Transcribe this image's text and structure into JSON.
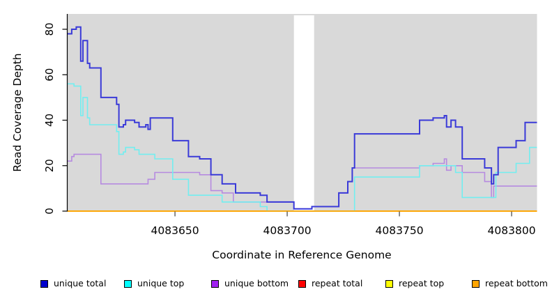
{
  "y_axis": {
    "label": "Read Coverage Depth",
    "tick_labels": [
      "0",
      "20",
      "40",
      "60",
      "80"
    ],
    "tick_values": [
      0,
      20,
      40,
      60,
      80
    ],
    "range": [
      0,
      80
    ]
  },
  "x_axis": {
    "label": "Coordinate in Reference Genome",
    "tick_labels": [
      "4083650",
      "4083700",
      "4083750",
      "4083800"
    ],
    "tick_values": [
      4083650,
      4083700,
      4083750,
      4083800
    ],
    "range": [
      4083602,
      4083811
    ]
  },
  "plot": {
    "background_color": "#d9d9d9",
    "no_data_gap": {
      "from": 4083703,
      "to": 4083712
    }
  },
  "legend": {
    "items": [
      {
        "label": "unique total",
        "color": "#0000cd"
      },
      {
        "label": "unique top",
        "color": "#00ffff"
      },
      {
        "label": "unique bottom",
        "color": "#a020f0"
      },
      {
        "label": "repeat total",
        "color": "#ff0000"
      },
      {
        "label": "repeat top",
        "color": "#ffff00"
      },
      {
        "label": "repeat bottom",
        "color": "#ffa500"
      }
    ]
  },
  "chart_data": {
    "type": "line",
    "step": "post",
    "title": "",
    "xlabel": "Coordinate in Reference Genome",
    "ylabel": "Read Coverage Depth",
    "xlim": [
      4083602,
      4083811
    ],
    "ylim": [
      0,
      80
    ],
    "grid": false,
    "series": [
      {
        "name": "repeat total",
        "line_color": "#ff0000",
        "width": 1.5,
        "points": [
          [
            4083602,
            0
          ]
        ]
      },
      {
        "name": "repeat top",
        "line_color": "#ffff00",
        "width": 1.5,
        "points": [
          [
            4083602,
            0
          ]
        ]
      },
      {
        "name": "unique bottom",
        "line_color": "#b68ae0",
        "width": 1.6,
        "points": [
          [
            4083602,
            22
          ],
          [
            4083604,
            24
          ],
          [
            4083605,
            25
          ],
          [
            4083617,
            12
          ],
          [
            4083638,
            14
          ],
          [
            4083641,
            17
          ],
          [
            4083661,
            16
          ],
          [
            4083666,
            9
          ],
          [
            4083671,
            8
          ],
          [
            4083676,
            4
          ],
          [
            4083703,
            1
          ],
          [
            4083711,
            2
          ],
          [
            4083723,
            8
          ],
          [
            4083727,
            13
          ],
          [
            4083729,
            19
          ],
          [
            4083759,
            20
          ],
          [
            4083765,
            21
          ],
          [
            4083770,
            23
          ],
          [
            4083771,
            18
          ],
          [
            4083773,
            20
          ],
          [
            4083778,
            17
          ],
          [
            4083788,
            13
          ],
          [
            4083791,
            6
          ],
          [
            4083792,
            11
          ]
        ]
      },
      {
        "name": "unique top",
        "line_color": "#72eef0",
        "width": 1.6,
        "points": [
          [
            4083602,
            56
          ],
          [
            4083605,
            55
          ],
          [
            4083608,
            42
          ],
          [
            4083609,
            50
          ],
          [
            4083611,
            41
          ],
          [
            4083612,
            38
          ],
          [
            4083624,
            35
          ],
          [
            4083625,
            25
          ],
          [
            4083627,
            26
          ],
          [
            4083628,
            28
          ],
          [
            4083632,
            27
          ],
          [
            4083634,
            25
          ],
          [
            4083641,
            23
          ],
          [
            4083649,
            14
          ],
          [
            4083656,
            7
          ],
          [
            4083671,
            4
          ],
          [
            4083688,
            2
          ],
          [
            4083691,
            0
          ],
          [
            4083730,
            15
          ],
          [
            4083759,
            20
          ],
          [
            4083775,
            17
          ],
          [
            4083778,
            6
          ],
          [
            4083793,
            17
          ],
          [
            4083802,
            21
          ],
          [
            4083808,
            28
          ]
        ]
      },
      {
        "name": "unique total",
        "line_color": "#3a3ad8",
        "width": 2,
        "points": [
          [
            4083602,
            78
          ],
          [
            4083604,
            80
          ],
          [
            4083606,
            81
          ],
          [
            4083608,
            66
          ],
          [
            4083609,
            75
          ],
          [
            4083611,
            65
          ],
          [
            4083612,
            63
          ],
          [
            4083617,
            50
          ],
          [
            4083624,
            47
          ],
          [
            4083625,
            37
          ],
          [
            4083627,
            38
          ],
          [
            4083628,
            40
          ],
          [
            4083632,
            39
          ],
          [
            4083634,
            37
          ],
          [
            4083637,
            38
          ],
          [
            4083638,
            36
          ],
          [
            4083639,
            41
          ],
          [
            4083649,
            31
          ],
          [
            4083656,
            24
          ],
          [
            4083661,
            23
          ],
          [
            4083666,
            16
          ],
          [
            4083671,
            12
          ],
          [
            4083677,
            8
          ],
          [
            4083688,
            7
          ],
          [
            4083691,
            4
          ],
          [
            4083703,
            1
          ],
          [
            4083711,
            2
          ],
          [
            4083723,
            8
          ],
          [
            4083727,
            13
          ],
          [
            4083729,
            19
          ],
          [
            4083730,
            34
          ],
          [
            4083759,
            40
          ],
          [
            4083765,
            41
          ],
          [
            4083770,
            42
          ],
          [
            4083771,
            37
          ],
          [
            4083773,
            40
          ],
          [
            4083775,
            37
          ],
          [
            4083778,
            23
          ],
          [
            4083788,
            19
          ],
          [
            4083791,
            12
          ],
          [
            4083792,
            16
          ],
          [
            4083794,
            28
          ],
          [
            4083802,
            31
          ],
          [
            4083806,
            39
          ]
        ]
      },
      {
        "name": "repeat bottom",
        "line_color": "#ffa500",
        "width": 1.8,
        "points": [
          [
            4083602,
            0
          ]
        ]
      }
    ]
  }
}
